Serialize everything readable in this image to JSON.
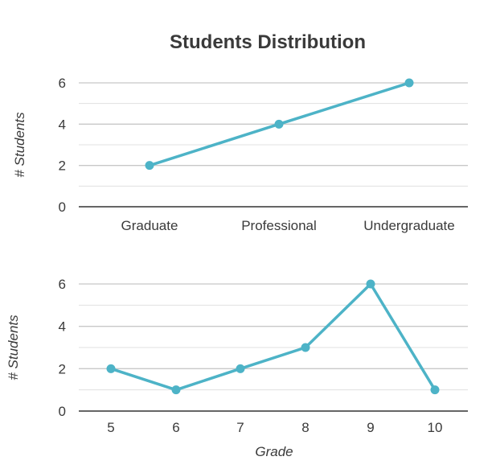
{
  "title": "Students Distribution",
  "colors": {
    "line": "#4db3c7",
    "text": "#3a3a3a",
    "grid": "#c8c8c8",
    "baseline": "#333333"
  },
  "chart_data": [
    {
      "type": "line",
      "categories": [
        "Graduate",
        "Professional",
        "Undergraduate"
      ],
      "series": [
        {
          "values": [
            2,
            4,
            6
          ]
        }
      ],
      "xlabel": "",
      "ylabel": "# Students",
      "ylim": [
        0,
        6
      ],
      "yticks": [
        0,
        2,
        4,
        6
      ],
      "grid": true
    },
    {
      "type": "line",
      "categories": [
        "5",
        "6",
        "7",
        "8",
        "9",
        "10"
      ],
      "series": [
        {
          "values": [
            2,
            1,
            2,
            3,
            6,
            1
          ]
        }
      ],
      "xlabel": "Grade",
      "ylabel": "# Students",
      "ylim": [
        0,
        6
      ],
      "yticks": [
        0,
        2,
        4,
        6
      ],
      "grid": true
    }
  ]
}
